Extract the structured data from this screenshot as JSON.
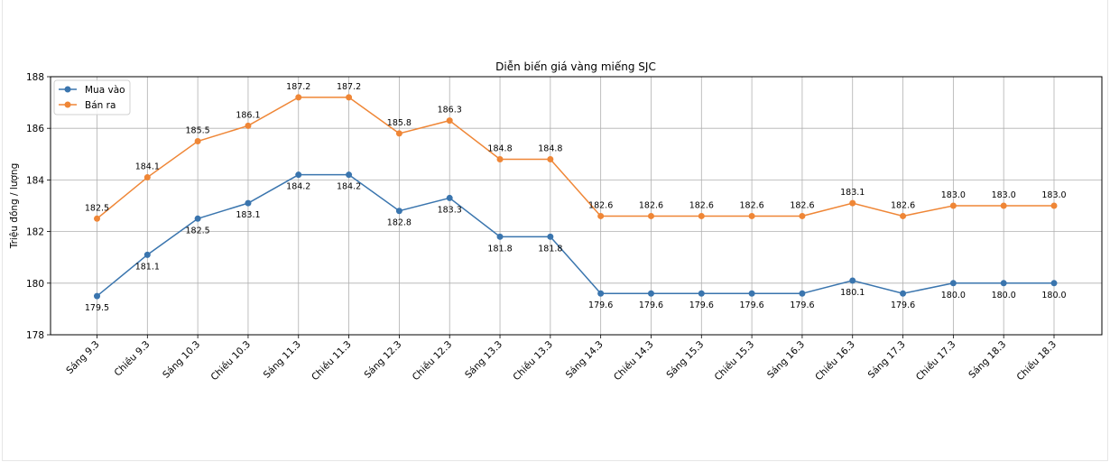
{
  "chart_data": {
    "type": "line",
    "title": "Diễn biến giá vàng miếng SJC",
    "xlabel": "",
    "ylabel": "Triệu đồng / lượng",
    "ylim": [
      178,
      188
    ],
    "yticks": [
      "178",
      "180",
      "182",
      "184",
      "186",
      "188"
    ],
    "grid": true,
    "legend_position": "top-left",
    "categories": [
      "Sáng 9.3",
      "Chiều 9.3",
      "Sáng 10.3",
      "Chiều 10.3",
      "Sáng 11.3",
      "Chiều 11.3",
      "Sáng 12.3",
      "Chiều 12.3",
      "Sáng 13.3",
      "Chiều 13.3",
      "Sáng 14.3",
      "Chiều 14.3",
      "Sáng 15.3",
      "Chiều 15.3",
      "Sáng 16.3",
      "Chiều 16.3",
      "Sáng 17.3",
      "Chiều 17.3",
      "Sáng 18.3",
      "Chiều 18.3"
    ],
    "series": [
      {
        "name": "Mua vào",
        "color": "#3a75ae",
        "label_position": "below",
        "values": [
          179.5,
          181.1,
          182.5,
          183.1,
          184.2,
          184.2,
          182.8,
          183.3,
          181.8,
          181.8,
          179.6,
          179.6,
          179.6,
          179.6,
          179.6,
          180.1,
          179.6,
          180.0,
          180.0,
          180.0
        ],
        "labels": [
          "179.5",
          "181.1",
          "182.5",
          "183.1",
          "184.2",
          "184.2",
          "182.8",
          "183.3",
          "181.8",
          "181.8",
          "179.6",
          "179.6",
          "179.6",
          "179.6",
          "179.6",
          "180.1",
          "179.6",
          "180.0",
          "180.0",
          "180.0"
        ]
      },
      {
        "name": "Bán ra",
        "color": "#ef8636",
        "label_position": "above",
        "values": [
          182.5,
          184.1,
          185.5,
          186.1,
          187.2,
          187.2,
          185.8,
          186.3,
          184.8,
          184.8,
          182.6,
          182.6,
          182.6,
          182.6,
          182.6,
          183.1,
          182.6,
          183.0,
          183.0,
          183.0
        ],
        "labels": [
          "182.5",
          "184.1",
          "185.5",
          "186.1",
          "187.2",
          "187.2",
          "185.8",
          "186.3",
          "184.8",
          "184.8",
          "182.6",
          "182.6",
          "182.6",
          "182.6",
          "182.6",
          "183.1",
          "182.6",
          "183.0",
          "183.0",
          "183.0"
        ]
      }
    ]
  }
}
